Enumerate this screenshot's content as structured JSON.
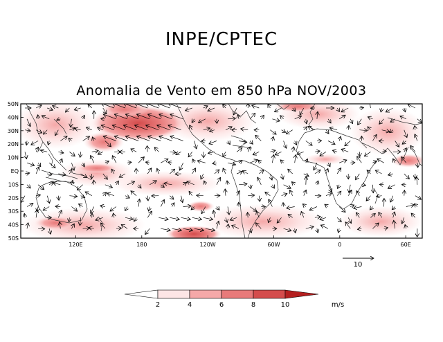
{
  "header": {
    "org_title": "INPE/CPTEC",
    "map_title": "Anomalia de Vento em 850 hPa NOV/2003"
  },
  "axes": {
    "lat_labels": [
      "50N",
      "40N",
      "30N",
      "20N",
      "10N",
      "EQ",
      "10S",
      "20S",
      "30S",
      "40S",
      "50S"
    ],
    "lon_labels": [
      "120E",
      "180",
      "120W",
      "60W",
      "0",
      "60E"
    ]
  },
  "reference_vector": {
    "label": "10"
  },
  "colorbar": {
    "levels": [
      "2",
      "4",
      "6",
      "8",
      "10"
    ],
    "unit": "m/s",
    "colors": [
      "#ffffff",
      "#fde5e5",
      "#f5a8a8",
      "#e87a7a",
      "#d44c4c",
      "#b41f1f"
    ]
  }
}
